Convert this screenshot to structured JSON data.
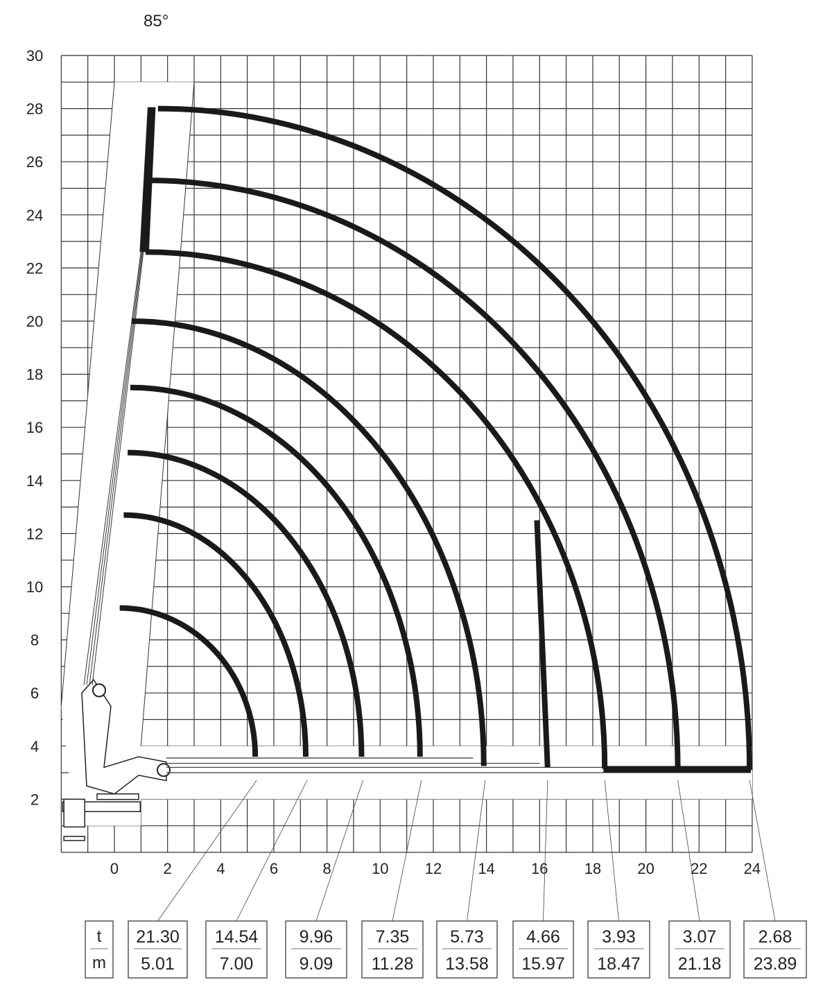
{
  "chart_data": {
    "type": "line",
    "angle_label": "85°",
    "xlabel": "",
    "ylabel": "",
    "xlim": [
      -2,
      24
    ],
    "ylim": [
      0,
      30
    ],
    "grid": true,
    "x_ticks": [
      0,
      2,
      4,
      6,
      8,
      10,
      12,
      14,
      16,
      18,
      20,
      22,
      24
    ],
    "y_ticks": [
      2,
      4,
      6,
      8,
      10,
      12,
      14,
      16,
      18,
      20,
      22,
      24,
      26,
      28,
      30
    ],
    "lift_curves": [
      {
        "top": [
          0.2,
          9.2
        ],
        "end": [
          5.3,
          3.6
        ]
      },
      {
        "top": [
          0.35,
          12.7
        ],
        "end": [
          7.2,
          3.6
        ]
      },
      {
        "top": [
          0.5,
          15.05
        ],
        "end": [
          9.3,
          3.6
        ]
      },
      {
        "top": [
          0.6,
          17.5
        ],
        "end": [
          11.5,
          3.6
        ]
      },
      {
        "top": [
          0.65,
          20.0
        ],
        "end": [
          13.9,
          3.25
        ]
      },
      {
        "top": [
          1.17,
          22.6
        ],
        "end": [
          18.45,
          3.15
        ]
      },
      {
        "top": [
          1.25,
          25.3
        ],
        "end": [
          21.2,
          3.1
        ]
      },
      {
        "top": [
          1.64,
          28.0
        ],
        "end": [
          23.9,
          3.1
        ]
      }
    ],
    "reach_line": {
      "top": [
        15.9,
        12.5
      ],
      "end": [
        16.3,
        3.2
      ]
    },
    "load_table": {
      "header": {
        "load_unit": "t",
        "radius_unit": "m"
      },
      "entries": [
        {
          "load": "21.30",
          "radius": "5.01"
        },
        {
          "load": "14.54",
          "radius": "7.00"
        },
        {
          "load": "9.96",
          "radius": "9.09"
        },
        {
          "load": "7.35",
          "radius": "11.28"
        },
        {
          "load": "5.73",
          "radius": "13.58"
        },
        {
          "load": "4.66",
          "radius": "15.97"
        },
        {
          "load": "3.93",
          "radius": "18.47"
        },
        {
          "load": "3.07",
          "radius": "21.18"
        },
        {
          "load": "2.68",
          "radius": "23.89"
        }
      ]
    },
    "colors": {
      "curve": "#1a1a1a",
      "grid": "#333333",
      "box_border": "#555555"
    }
  }
}
